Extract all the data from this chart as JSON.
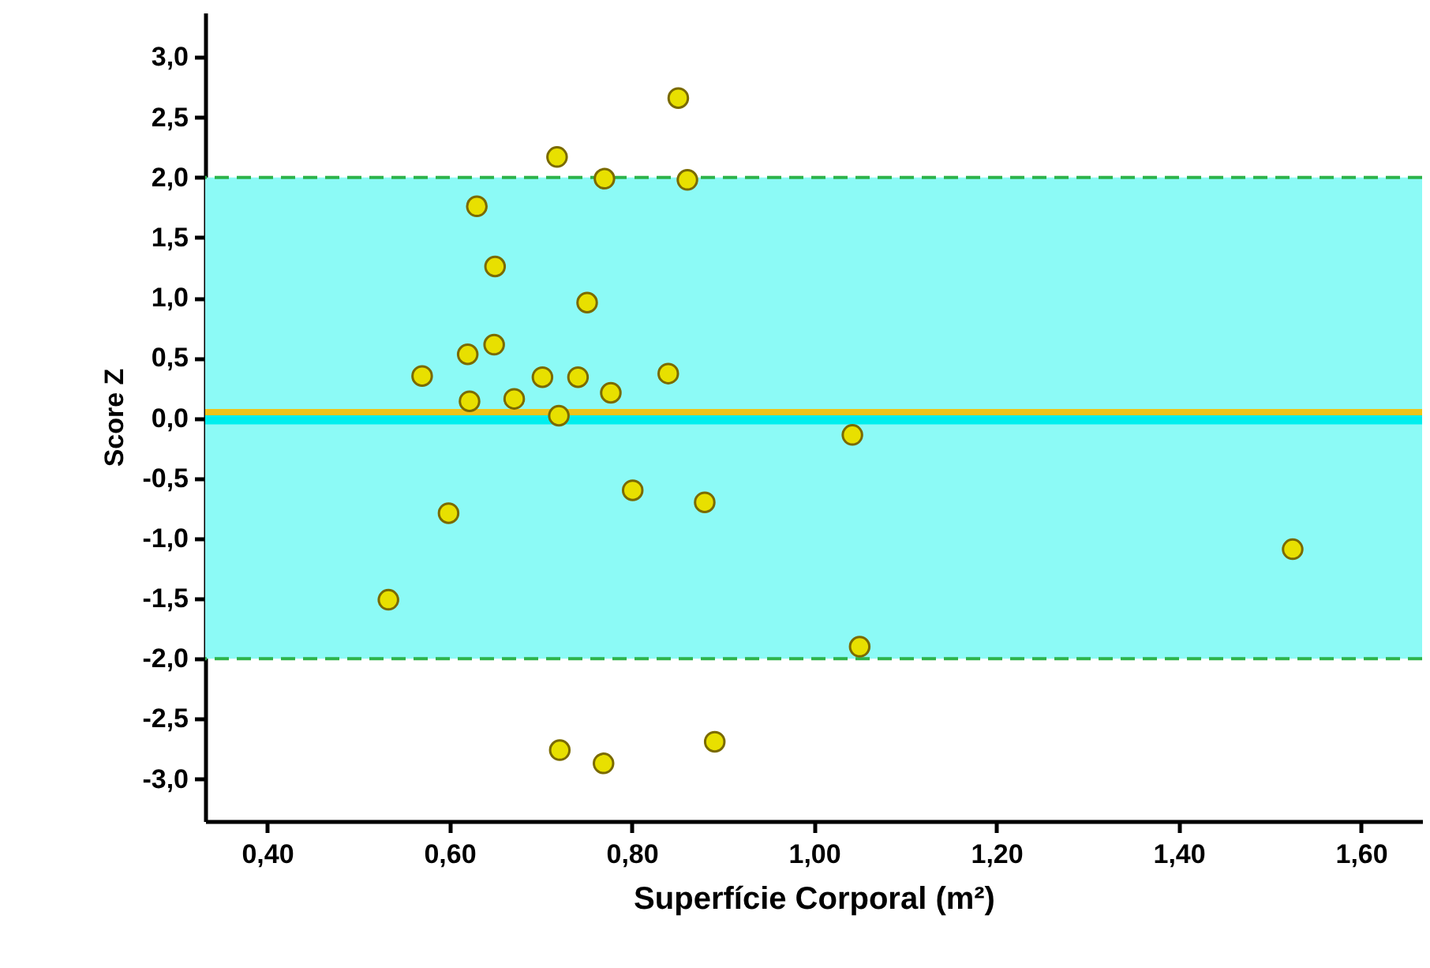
{
  "chart_data": {
    "type": "scatter",
    "xlabel": "Superfície Corporal (m²)",
    "ylabel": "Score Z",
    "x": [
      0.851,
      0.718,
      0.77,
      0.861,
      0.63,
      0.65,
      0.751,
      0.649,
      0.62,
      0.57,
      0.702,
      0.741,
      0.84,
      0.622,
      0.671,
      0.777,
      0.72,
      0.801,
      0.88,
      0.599,
      0.533,
      0.721,
      0.769,
      0.891,
      1.042,
      1.05,
      1.525
    ],
    "series": [
      {
        "color": "#e8e000",
        "values": [
          2.66,
          2.17,
          1.99,
          1.98,
          1.76,
          1.26,
          0.96,
          0.61,
          0.53,
          0.35,
          0.34,
          0.34,
          0.37,
          0.14,
          0.16,
          0.21,
          0.02,
          -0.6,
          -0.7,
          -0.79,
          -1.51,
          -2.76,
          -2.87,
          -2.69,
          -0.14,
          -1.9,
          -1.09
        ]
      }
    ],
    "marker": "circle",
    "xlim": [
      0.332,
      1.667
    ],
    "xticks": [
      {
        "value": 0.4,
        "label": "0,40"
      },
      {
        "value": 0.6,
        "label": "0,60"
      },
      {
        "value": 0.8,
        "label": "0,80"
      },
      {
        "value": 1.0,
        "label": "1,00"
      },
      {
        "value": 1.2,
        "label": "1,20"
      },
      {
        "value": 1.4,
        "label": "1,40"
      },
      {
        "value": 1.6,
        "label": "1,60"
      }
    ],
    "ylim": [
      -3.35,
      3.37
    ],
    "yticks": [
      {
        "value": 3,
        "label": "3,0"
      },
      {
        "value": 2.5,
        "label": "2,5"
      },
      {
        "value": 2,
        "label": "2,0"
      },
      {
        "value": 1.5,
        "label": "1,5"
      },
      {
        "value": 1,
        "label": "1,0"
      },
      {
        "value": 0.5,
        "label": "0,5"
      },
      {
        "value": 0,
        "label": "0,0"
      },
      {
        "value": -0.5,
        "label": "-0,5"
      },
      {
        "value": -1,
        "label": "-1,0"
      },
      {
        "value": -1.5,
        "label": "-1,5"
      },
      {
        "value": -2,
        "label": "-2,0"
      },
      {
        "value": -2.5,
        "label": "-2,5"
      },
      {
        "value": -3,
        "label": "-3,0"
      }
    ],
    "bands": [
      {
        "axis": "y",
        "from": -2,
        "to": 2,
        "color": "#8cfaf6"
      }
    ],
    "ref_lines": [
      {
        "axis": "y",
        "value": 2,
        "color": "#2db34a",
        "line_style": "dashed"
      },
      {
        "axis": "y",
        "value": -2,
        "color": "#2db34a",
        "line_style": "dashed"
      },
      {
        "axis": "y",
        "value": 0,
        "color": "#00eeee",
        "line_style": "solid"
      },
      {
        "axis": "y",
        "value": 0.05,
        "color": "#f0c419",
        "line_style": "solid"
      }
    ],
    "grid": false
  }
}
